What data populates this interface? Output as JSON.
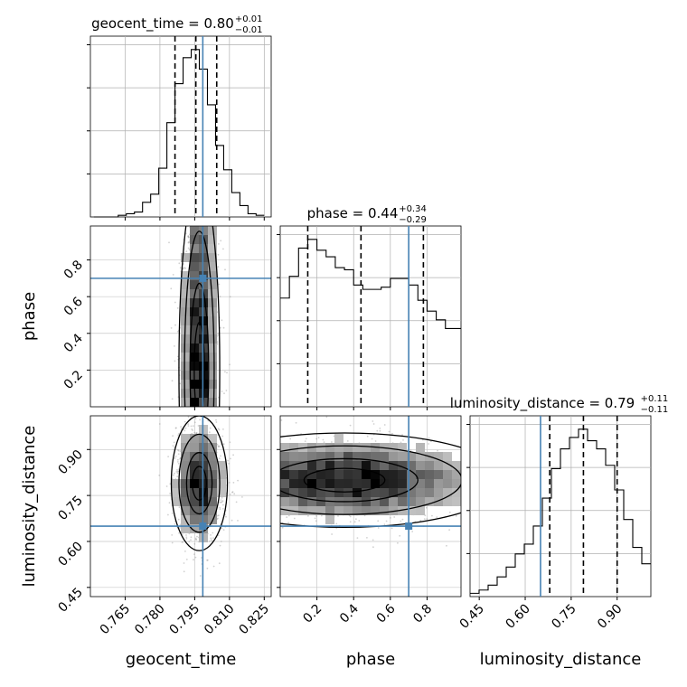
{
  "chart_data": {
    "type": "corner",
    "params": [
      {
        "name": "geocent_time",
        "title": {
          "text": "geocent_time = 0.80",
          "sup": "+0.01",
          "sub": "−0.01"
        },
        "range": [
          0.75,
          0.828
        ],
        "ticks": [
          0.765,
          0.78,
          0.795,
          0.81,
          0.825
        ],
        "tick_labels": [
          "0.765",
          "0.780",
          "0.795",
          "0.810",
          "0.825"
        ],
        "quantiles": [
          0.7865,
          0.7955,
          0.8045
        ],
        "truth": 0.7985,
        "hist": {
          "edges": [
            0.7515,
            0.755,
            0.7585,
            0.762,
            0.7655,
            0.769,
            0.7725,
            0.776,
            0.7795,
            0.783,
            0.7865,
            0.79,
            0.7935,
            0.797,
            0.8005,
            0.804,
            0.8075,
            0.811,
            0.8145,
            0.818,
            0.8215,
            0.825
          ],
          "counts": [
            0,
            0,
            0,
            1,
            2,
            3,
            9,
            14,
            30,
            58,
            82,
            98,
            103,
            91,
            69,
            44,
            29,
            15,
            7,
            2,
            1
          ]
        }
      },
      {
        "name": "phase",
        "title": {
          "text": "phase = 0.44",
          "sup": "+0.34",
          "sub": "−0.29"
        },
        "range": [
          0.0,
          0.985
        ],
        "ticks": [
          0.2,
          0.4,
          0.6,
          0.8
        ],
        "tick_labels": [
          "0.2",
          "0.4",
          "0.6",
          "0.8"
        ],
        "quantiles": [
          0.15,
          0.44,
          0.78
        ],
        "truth": 0.7,
        "hist": {
          "edges": [
            0.0,
            0.05,
            0.1,
            0.15,
            0.2,
            0.25,
            0.3,
            0.35,
            0.4,
            0.45,
            0.5,
            0.55,
            0.6,
            0.65,
            0.7,
            0.75,
            0.8,
            0.85,
            0.9,
            0.95,
            0.985
          ],
          "counts": [
            50,
            60,
            73,
            77,
            72,
            69,
            64,
            63,
            56,
            54,
            54,
            55,
            59,
            59,
            56,
            49,
            44,
            40,
            36,
            36
          ]
        }
      },
      {
        "name": "luminosity_distance",
        "title": {
          "text": "luminosity_distance = 0.79",
          "sup": "+0.11",
          "sub": "−0.11"
        },
        "range": [
          0.42,
          1.01
        ],
        "ticks": [
          0.45,
          0.6,
          0.75,
          0.9
        ],
        "tick_labels": [
          "0.45",
          "0.60",
          "0.75",
          "0.90"
        ],
        "quantiles": [
          0.68,
          0.79,
          0.9
        ],
        "truth": 0.65,
        "hist": {
          "edges": [
            0.42,
            0.4495,
            0.479,
            0.5085,
            0.538,
            0.5675,
            0.597,
            0.6265,
            0.656,
            0.6855,
            0.715,
            0.7445,
            0.774,
            0.8035,
            0.833,
            0.8625,
            0.892,
            0.9215,
            0.951,
            0.9805,
            1.01
          ],
          "counts": [
            2,
            4,
            7,
            12,
            18,
            26,
            32,
            43,
            60,
            78,
            90,
            97,
            102,
            95,
            90,
            80,
            65,
            47,
            30,
            20
          ]
        }
      }
    ],
    "pairs": [
      {
        "x": "geocent_time",
        "y": "phase",
        "mode": {
          "x": 0.797,
          "y": 0.2,
          "sx": 0.004,
          "sy": 0.35
        }
      },
      {
        "x": "geocent_time",
        "y": "luminosity_distance",
        "mode": {
          "x": 0.797,
          "y": 0.79,
          "sx": 0.0055,
          "sy": 0.1
        }
      },
      {
        "x": "phase",
        "y": "luminosity_distance",
        "mode": {
          "x": 0.35,
          "y": 0.8,
          "sx": 0.4,
          "sy": 0.07
        }
      }
    ],
    "truth_color": "#4682b4",
    "hist_color": "#000000",
    "grid": true
  }
}
